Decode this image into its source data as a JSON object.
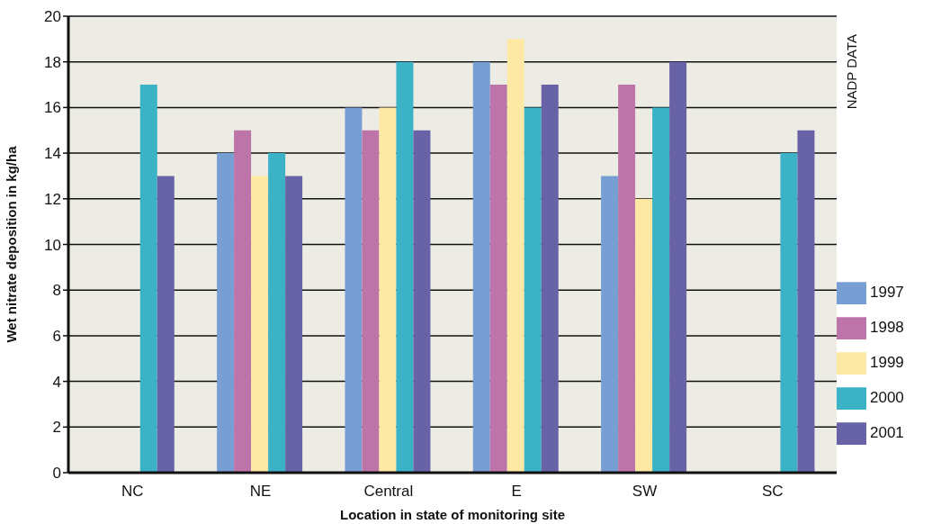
{
  "chart_data": {
    "type": "bar",
    "categories": [
      "NC",
      "NE",
      "Central",
      "E",
      "SW",
      "SC"
    ],
    "series": [
      {
        "name": "1997",
        "color": "#779fd4",
        "values": [
          null,
          14,
          16,
          18,
          13,
          null
        ]
      },
      {
        "name": "1998",
        "color": "#bd75a9",
        "values": [
          null,
          15,
          15,
          17,
          17,
          null
        ]
      },
      {
        "name": "1999",
        "color": "#fde9a4",
        "values": [
          null,
          13,
          16,
          19,
          12,
          null
        ]
      },
      {
        "name": "2000",
        "color": "#3bb2c6",
        "values": [
          17,
          14,
          18,
          16,
          16,
          14
        ]
      },
      {
        "name": "2001",
        "color": "#6862a6",
        "values": [
          13,
          13,
          15,
          17,
          18,
          15
        ]
      }
    ],
    "xlabel": "Location in state of monitoring site",
    "ylabel": "Wet nitrate deposition in kg/ha",
    "ylim": [
      0,
      20
    ],
    "yticks": [
      0,
      2,
      4,
      6,
      8,
      10,
      12,
      14,
      16,
      18,
      20
    ],
    "grid": "y",
    "legend": "bottom right",
    "annotations": [
      "NADP DATA"
    ]
  }
}
